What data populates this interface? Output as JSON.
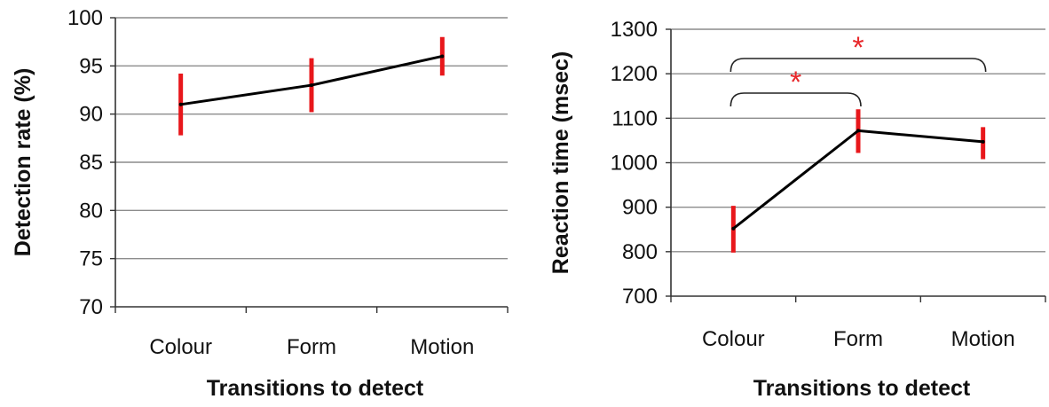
{
  "colors": {
    "grid": "#8c8c8c",
    "axis": "#333333",
    "line": "#000000",
    "error_bar": "#e8171b",
    "significance": "#e8282b",
    "bracket": "#222222"
  },
  "chart_data": [
    {
      "type": "line",
      "title": "",
      "xlabel": "Transitions to detect",
      "ylabel": "Detection rate (%)",
      "categories": [
        "Colour",
        "Form",
        "Motion"
      ],
      "ylim": [
        70,
        100
      ],
      "yticks": [
        70,
        75,
        80,
        85,
        90,
        95,
        100
      ],
      "grid": true,
      "series": [
        {
          "values": [
            91,
            93,
            96
          ],
          "error_low": [
            87.8,
            90.2,
            94.0
          ],
          "error_high": [
            94.2,
            95.8,
            98.0
          ]
        }
      ],
      "annotations": []
    },
    {
      "type": "line",
      "title": "",
      "xlabel": "Transitions to detect",
      "ylabel": "Reaction time (msec)",
      "categories": [
        "Colour",
        "Form",
        "Motion"
      ],
      "ylim": [
        700,
        1300
      ],
      "yticks": [
        700,
        800,
        900,
        1000,
        1100,
        1200,
        1300
      ],
      "grid": true,
      "series": [
        {
          "values": [
            852,
            1072,
            1047
          ],
          "error_low": [
            798,
            1022,
            1008
          ],
          "error_high": [
            903,
            1120,
            1080
          ]
        }
      ],
      "annotations": [
        {
          "type": "significance",
          "label": "*",
          "from": "Colour",
          "to": "Form"
        },
        {
          "type": "significance",
          "label": "*",
          "from": "Colour",
          "to": "Motion"
        }
      ]
    }
  ]
}
